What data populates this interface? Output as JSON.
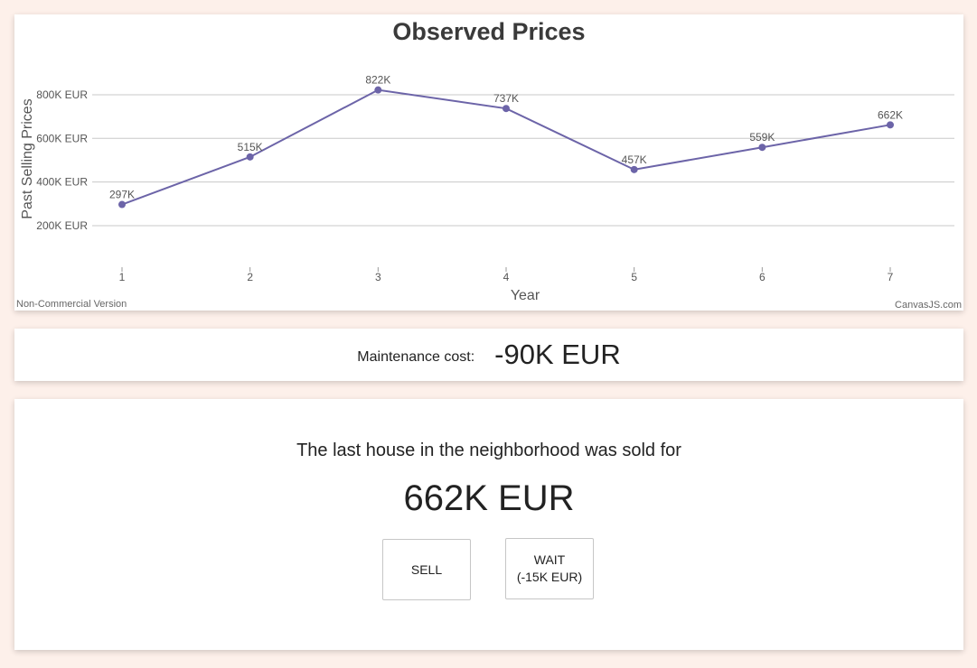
{
  "maintenance": {
    "label": "Maintenance cost:",
    "value": "-90K EUR"
  },
  "decision": {
    "text": "The last house in the neighborhood was sold for",
    "price": "662K EUR",
    "sell_label": "SELL",
    "wait_label": "WAIT",
    "wait_cost": "(-15K EUR)"
  },
  "chart_data": {
    "type": "line",
    "title": "Observed Prices",
    "xlabel": "Year",
    "ylabel": "Past Selling Prices",
    "x": [
      1,
      2,
      3,
      4,
      5,
      6,
      7
    ],
    "series": [
      {
        "values": [
          297,
          515,
          822,
          737,
          457,
          559,
          662
        ],
        "labels": [
          "297K",
          "515K",
          "822K",
          "737K",
          "457K",
          "559K",
          "662K"
        ]
      }
    ],
    "y_ticks": [
      {
        "value": 200,
        "label": "200K EUR"
      },
      {
        "value": 400,
        "label": "400K EUR"
      },
      {
        "value": 600,
        "label": "600K EUR"
      },
      {
        "value": 800,
        "label": "800K EUR"
      }
    ],
    "y_unit": "K EUR",
    "ylim": [
      0,
      900
    ],
    "xlim": [
      1,
      7
    ],
    "grid": true,
    "line_color": "#6c64a8",
    "credits_left": "Non-Commercial Version",
    "credits_right": "CanvasJS.com"
  }
}
